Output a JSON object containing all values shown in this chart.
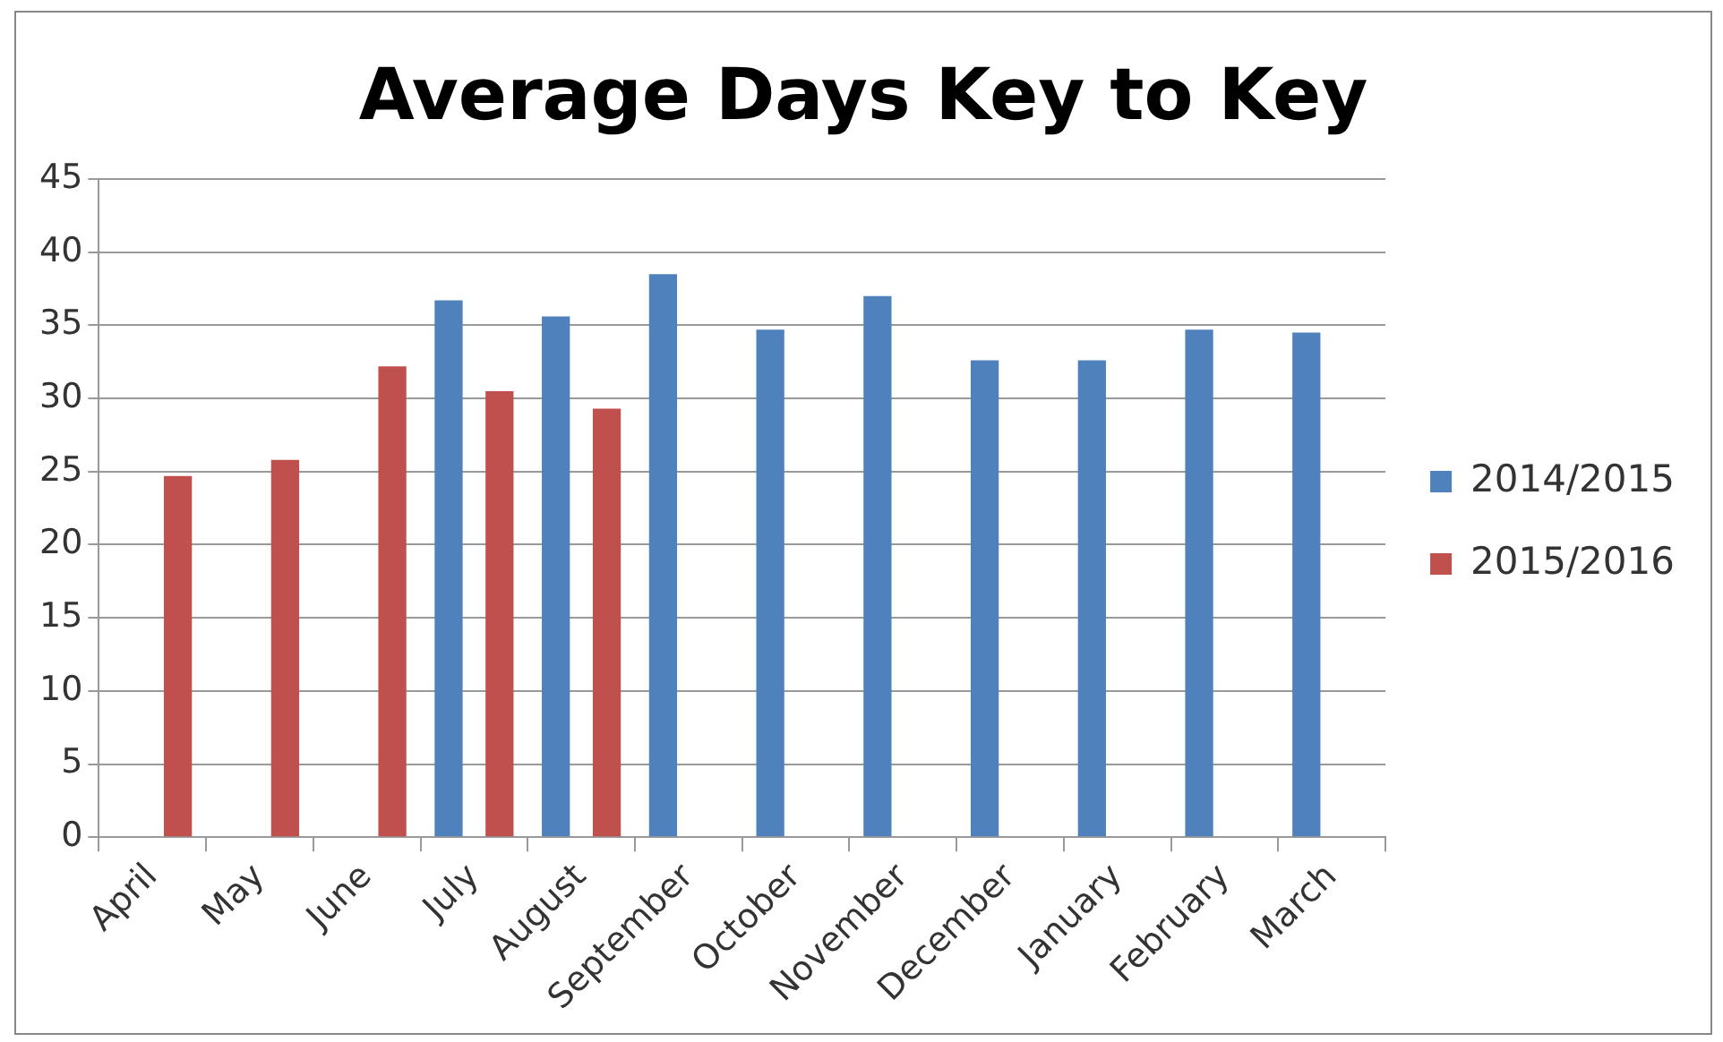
{
  "chart_data": {
    "type": "bar",
    "title": "Average Days Key to Key",
    "categories": [
      "April",
      "May",
      "June",
      "July",
      "August",
      "September",
      "October",
      "November",
      "December",
      "January",
      "February",
      "March"
    ],
    "series": [
      {
        "name": "2014/2015",
        "color": "#4f81bd",
        "values": [
          null,
          null,
          null,
          36.7,
          35.6,
          38.5,
          34.7,
          37.0,
          32.6,
          32.6,
          34.7,
          34.5
        ]
      },
      {
        "name": "2015/2016",
        "color": "#c0504d",
        "values": [
          24.7,
          25.8,
          32.2,
          30.5,
          29.3,
          null,
          null,
          null,
          null,
          null,
          null,
          null
        ]
      }
    ],
    "ylim": [
      0,
      45
    ],
    "yticks": [
      0,
      5,
      10,
      15,
      20,
      25,
      30,
      35,
      40,
      45
    ],
    "grid": "y",
    "legend": "right"
  }
}
